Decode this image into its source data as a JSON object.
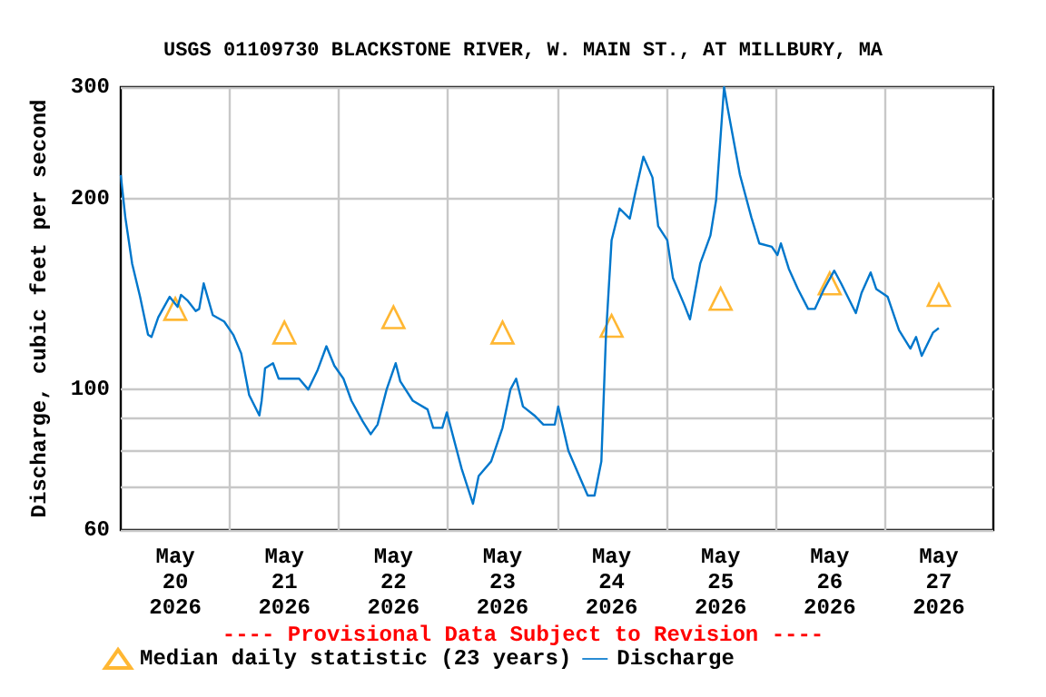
{
  "chart_data": {
    "type": "line",
    "title": "USGS 01109730 BLACKSTONE RIVER, W. MAIN ST., AT MILLBURY, MA",
    "ylabel": "Discharge, cubic feet per second",
    "annotations": [
      "---- Provisional Data Subject to Revision ----"
    ],
    "log": "y",
    "grid": true,
    "legend": "bottom",
    "xlim": [
      "2026-05-20T00:00",
      "2026-05-28T00:00"
    ],
    "xticks": [
      {
        "value": "2026-05-20T12:00",
        "label": "May\n20\n2026"
      },
      {
        "value": "2026-05-21T00:00",
        "label": null
      },
      {
        "value": "2026-05-21T12:00",
        "label": "May\n21\n2026"
      },
      {
        "value": "2026-05-22T00:00",
        "label": null
      },
      {
        "value": "2026-05-22T12:00",
        "label": "May\n22\n2026"
      },
      {
        "value": "2026-05-23T00:00",
        "label": null
      },
      {
        "value": "2026-05-23T12:00",
        "label": "May\n23\n2026"
      },
      {
        "value": "2026-05-24T00:00",
        "label": null
      },
      {
        "value": "2026-05-24T12:00",
        "label": "May\n24\n2026"
      },
      {
        "value": "2026-05-25T00:00",
        "label": null
      },
      {
        "value": "2026-05-25T12:00",
        "label": "May\n25\n2026"
      },
      {
        "value": "2026-05-26T00:00",
        "label": null
      },
      {
        "value": "2026-05-26T12:00",
        "label": "May\n26\n2026"
      },
      {
        "value": "2026-05-27T00:00",
        "label": null
      },
      {
        "value": "2026-05-27T12:00",
        "label": "May\n27\n2026"
      }
    ],
    "ylim": [
      60,
      300
    ],
    "yticks": [
      60,
      {
        "value": 70,
        "label": null
      },
      {
        "value": 80,
        "label": null
      },
      {
        "value": 90,
        "label": null
      },
      100,
      200,
      300
    ],
    "series": [
      {
        "name": "Median daily statistic (23 years)",
        "type": "scatter",
        "marker": "triangle",
        "color": "#ffa500",
        "x": [
          "2026-05-20T12:00",
          "2026-05-21T12:00",
          "2026-05-22T12:00",
          "2026-05-23T12:00",
          "2026-05-24T12:00",
          "2026-05-25T12:00",
          "2026-05-26T12:00",
          "2026-05-27T12:00"
        ],
        "values": [
          134,
          123,
          130,
          123,
          126,
          139,
          147,
          141
        ]
      },
      {
        "name": "Discharge",
        "type": "line",
        "marker": "none",
        "color": "#0077cc",
        "x": [
          "2026-05-20T00:00",
          "2026-05-20T01:00",
          "2026-05-20T02:30",
          "2026-05-20T04:15",
          "2026-05-20T06:00",
          "2026-05-20T06:45",
          "2026-05-20T08:15",
          "2026-05-20T10:45",
          "2026-05-20T12:30",
          "2026-05-20T13:15",
          "2026-05-20T14:45",
          "2026-05-20T16:30",
          "2026-05-20T17:15",
          "2026-05-20T18:15",
          "2026-05-20T20:15",
          "2026-05-20T22:45",
          "2026-05-21T00:45",
          "2026-05-21T02:30",
          "2026-05-21T04:15",
          "2026-05-21T06:30",
          "2026-05-21T07:00",
          "2026-05-21T07:45",
          "2026-05-21T09:30",
          "2026-05-21T10:45",
          "2026-05-21T15:15",
          "2026-05-21T17:15",
          "2026-05-21T19:15",
          "2026-05-21T21:15",
          "2026-05-21T23:00",
          "2026-05-22T01:00",
          "2026-05-22T02:45",
          "2026-05-22T05:15",
          "2026-05-22T07:00",
          "2026-05-22T08:30",
          "2026-05-22T10:30",
          "2026-05-22T12:30",
          "2026-05-22T13:30",
          "2026-05-22T16:15",
          "2026-05-22T19:30",
          "2026-05-22T20:45",
          "2026-05-22T22:45",
          "2026-05-22T23:45",
          "2026-05-23T01:00",
          "2026-05-23T03:00",
          "2026-05-23T05:30",
          "2026-05-23T06:45",
          "2026-05-23T09:30",
          "2026-05-23T12:00",
          "2026-05-23T13:45",
          "2026-05-23T15:00",
          "2026-05-23T16:30",
          "2026-05-23T19:00",
          "2026-05-23T21:00",
          "2026-05-23T23:30",
          "2026-05-24T00:15",
          "2026-05-24T02:30",
          "2026-05-24T05:15",
          "2026-05-24T06:45",
          "2026-05-24T08:15",
          "2026-05-24T09:45",
          "2026-05-24T10:45",
          "2026-05-24T12:00",
          "2026-05-24T13:45",
          "2026-05-24T16:00",
          "2026-05-24T17:15",
          "2026-05-24T19:00",
          "2026-05-24T21:00",
          "2026-05-24T22:15",
          "2026-05-25T00:15",
          "2026-05-25T01:30",
          "2026-05-25T04:00",
          "2026-05-25T05:15",
          "2026-05-25T07:30",
          "2026-05-25T09:45",
          "2026-05-25T11:00",
          "2026-05-25T12:45",
          "2026-05-25T13:30",
          "2026-05-25T16:15",
          "2026-05-25T18:45",
          "2026-05-25T20:30",
          "2026-05-25T23:15",
          "2026-05-26T00:30",
          "2026-05-26T01:15",
          "2026-05-26T03:00",
          "2026-05-26T05:00",
          "2026-05-26T07:15",
          "2026-05-26T08:45",
          "2026-05-26T10:45",
          "2026-05-26T13:00",
          "2026-05-26T14:30",
          "2026-05-26T17:45",
          "2026-05-26T19:00",
          "2026-05-26T21:00",
          "2026-05-26T22:15",
          "2026-05-27T00:45",
          "2026-05-27T03:15",
          "2026-05-27T05:45",
          "2026-05-27T07:00",
          "2026-05-27T08:15",
          "2026-05-27T10:45",
          "2026-05-27T12:00"
        ],
        "values": [
          218,
          187,
          158,
          140,
          122,
          121,
          130,
          140,
          135,
          141,
          138,
          133,
          134,
          147,
          131,
          128,
          122,
          114,
          98,
          91,
          96,
          108,
          110,
          104,
          104,
          100,
          107,
          117,
          109,
          104,
          96,
          89,
          85,
          88,
          100,
          110,
          103,
          96,
          93,
          87,
          87,
          92,
          85,
          75,
          66,
          73,
          77,
          87,
          100,
          104,
          94,
          91,
          88,
          88,
          94,
          80,
          72,
          68,
          68,
          77,
          121,
          172,
          193,
          186,
          205,
          233,
          216,
          181,
          172,
          150,
          136,
          129,
          158,
          175,
          199,
          300,
          279,
          218,
          187,
          170,
          168,
          163,
          170,
          155,
          144,
          134,
          134,
          144,
          154,
          147,
          132,
          142,
          153,
          144,
          140,
          124,
          116,
          121,
          113,
          123,
          125
        ]
      }
    ]
  }
}
